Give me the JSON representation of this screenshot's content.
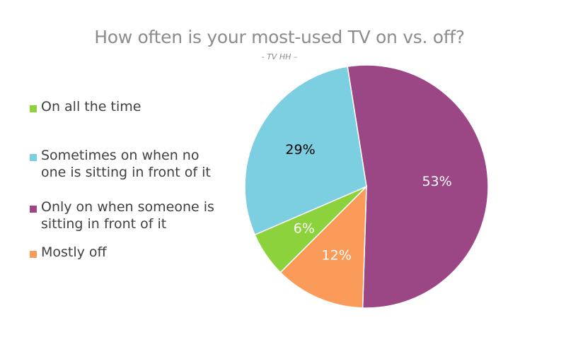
{
  "chart_data": {
    "type": "pie",
    "title": "How often is your most-used TV on vs. off?",
    "subtitle": "- TV HH –",
    "legend_position": "left",
    "slices": [
      {
        "label": "On all the time",
        "value": 6,
        "value_label": "6%",
        "color": "#8cd23c",
        "label_color": "#ffffff"
      },
      {
        "label": "Sometimes on when no\none is sitting in front of it",
        "value": 29,
        "value_label": "29%",
        "color": "#7ccfe0",
        "label_color": "#000000"
      },
      {
        "label": "Only on when someone is\nsitting in front of it",
        "value": 53,
        "value_label": "53%",
        "color": "#9b4786",
        "label_color": "#ffffff"
      },
      {
        "label": "Mostly off",
        "value": 12,
        "value_label": "12%",
        "color": "#fb9b5a",
        "label_color": "#ffffff"
      }
    ]
  }
}
